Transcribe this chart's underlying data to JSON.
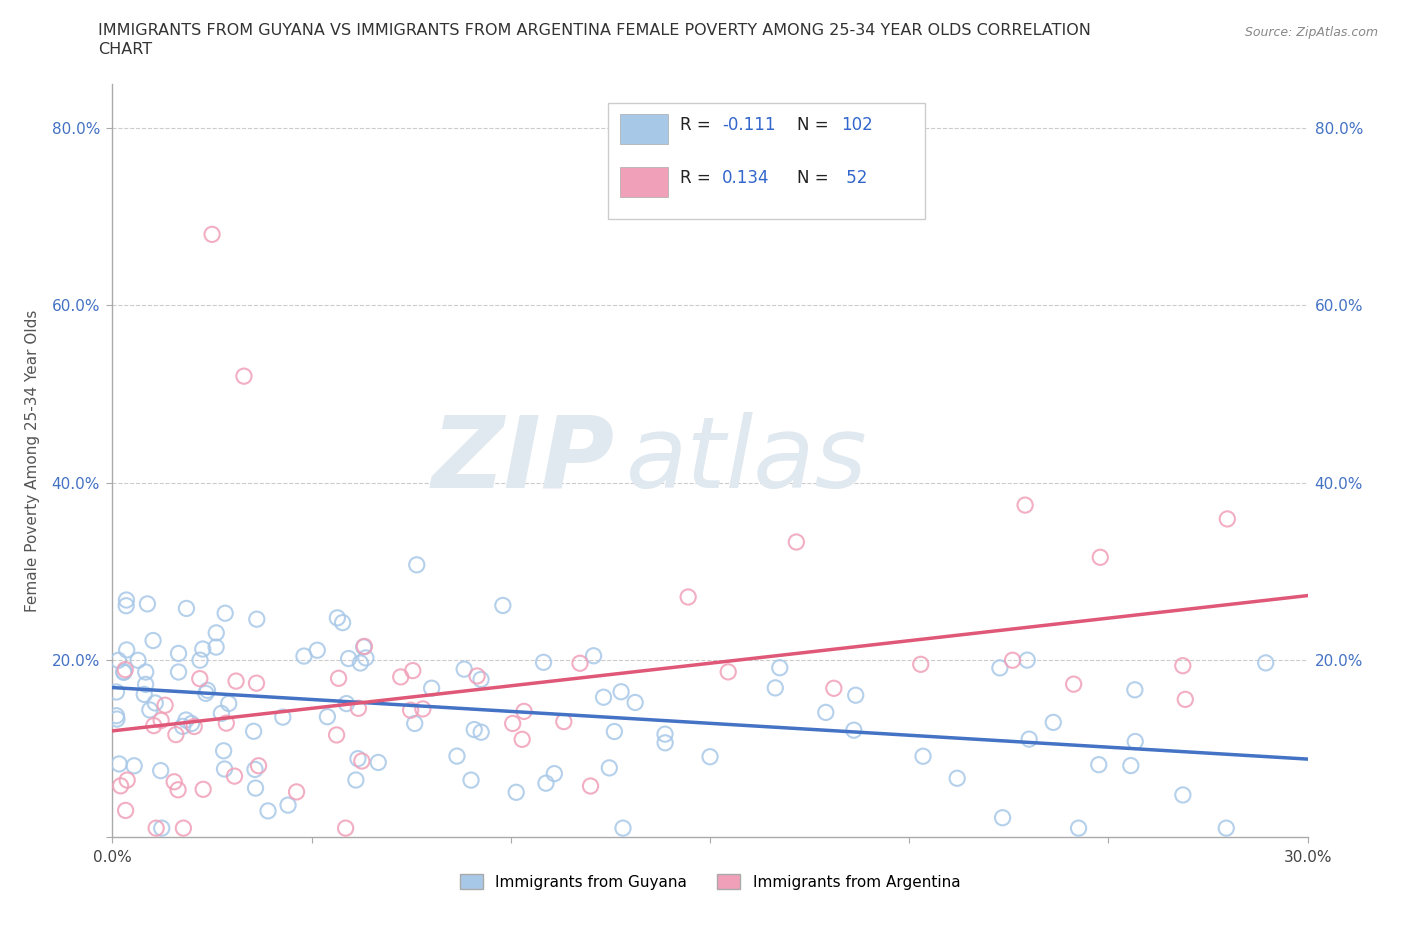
{
  "title_line1": "IMMIGRANTS FROM GUYANA VS IMMIGRANTS FROM ARGENTINA FEMALE POVERTY AMONG 25-34 YEAR OLDS CORRELATION",
  "title_line2": "CHART",
  "source_text": "Source: ZipAtlas.com",
  "ylabel": "Female Poverty Among 25-34 Year Olds",
  "xlim": [
    0.0,
    0.3
  ],
  "ylim": [
    0.0,
    0.85
  ],
  "guyana_color": "#a8c8e8",
  "argentina_color": "#f0a0b8",
  "guyana_R": -0.111,
  "guyana_N": 102,
  "argentina_R": 0.134,
  "argentina_N": 52,
  "watermark_zip": "ZIP",
  "watermark_atlas": "atlas",
  "background_color": "#ffffff",
  "grid_color": "#cccccc",
  "trend_color_guyana": "#4472c4",
  "trend_color_argentina": "#e05878",
  "tick_label_color": "#4472c4",
  "axis_label_color": "#555555"
}
